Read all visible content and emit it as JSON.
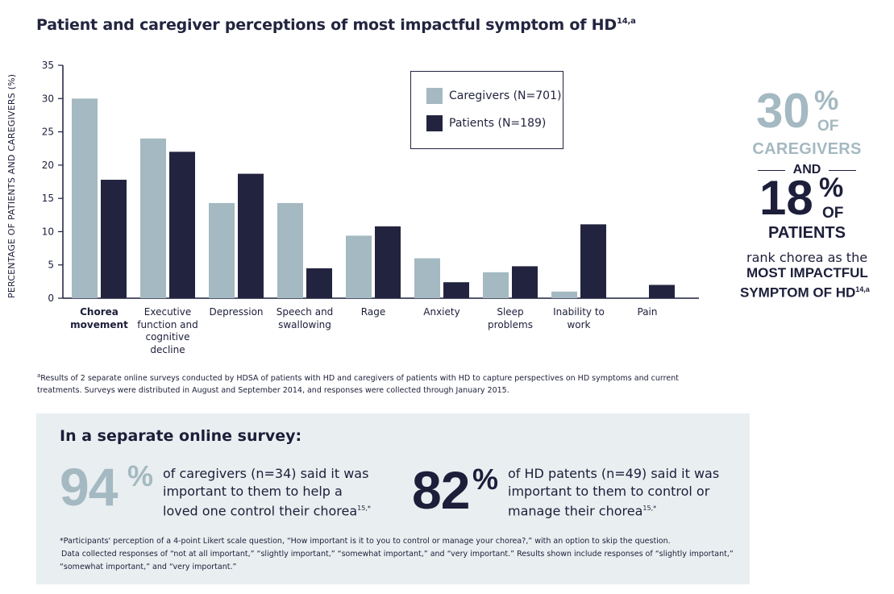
{
  "title": "Patient and caregiver perceptions of most impactful symptom of HD",
  "title_sup": "14,a",
  "colors": {
    "caregivers": "#a4b9c1",
    "patients": "#22243f",
    "panel_bg": "#e9eef0",
    "accent_grey": "#a4b9c1"
  },
  "chart_data": {
    "type": "bar",
    "ylabel": "PERCENTAGE OF PATIENTS AND CAREGIVERS (%)",
    "xlabel": "",
    "ylim": [
      0,
      35
    ],
    "yticks": [
      0,
      5,
      10,
      15,
      20,
      25,
      30,
      35
    ],
    "grid": false,
    "legend_position": "top-center",
    "categories": [
      [
        "Chorea",
        "movement"
      ],
      [
        "Executive",
        "function and",
        "cognitive",
        "decline"
      ],
      [
        "Depression"
      ],
      [
        "Speech and",
        "swallowing"
      ],
      [
        "Rage"
      ],
      [
        "Anxiety"
      ],
      [
        "Sleep",
        "problems"
      ],
      [
        "Inability to",
        "work"
      ],
      [
        "Pain"
      ]
    ],
    "series": [
      {
        "name": "Caregivers (N=701)",
        "color": "#a4b9c1",
        "values": [
          30,
          24,
          14.3,
          14.3,
          9.4,
          6,
          3.9,
          1,
          0
        ]
      },
      {
        "name": "Patients (N=189)",
        "color": "#22243f",
        "values": [
          17.8,
          22,
          18.7,
          4.5,
          10.8,
          2.4,
          4.8,
          11.1,
          2
        ]
      }
    ]
  },
  "callout": {
    "caregiver_pct": "30",
    "pct_symbol": "%",
    "of_label": "OF",
    "caregivers_label": "CAREGIVERS",
    "and_label": "AND",
    "patient_pct": "18",
    "patients_label": "PATIENTS",
    "rank_text": "rank chorea as the",
    "impact_line1": "MOST IMPACTFUL",
    "impact_line2": "SYMPTOM OF HD",
    "impact_sup": "14,a"
  },
  "footnote_a": {
    "marker": "a",
    "text": "Results of 2 separate online surveys conducted by HDSA of patients with HD and caregivers of patients with HD to capture perspectives on HD symptoms and current treatments. Surveys were distributed in August and September 2014, and responses were collected through January 2015."
  },
  "survey": {
    "heading": "In a separate online survey:",
    "stat1": {
      "number": "94",
      "pct": "%",
      "line1": "of caregivers (n=34) said it was",
      "line2": "important to them to help a",
      "line3": "loved one control their chorea",
      "sup": "15,*"
    },
    "stat2": {
      "number": "82",
      "pct": "%",
      "line1": "of HD patents (n=49) said it was",
      "line2": "important to them to control or",
      "line3": "manage their chorea",
      "sup": "15,*"
    },
    "footnote_line1": "*Participants' perception of a 4-point Likert scale question, “How important is it to you to control or manage your chorea?,” with an option to skip the question.",
    "footnote_line2": "Data collected responses of “not at all important,” “slightly important,” “somewhat important,” and “very important.” Results shown include responses of “slightly important,”",
    "footnote_line3": "“somewhat important,” and “very important.”"
  }
}
